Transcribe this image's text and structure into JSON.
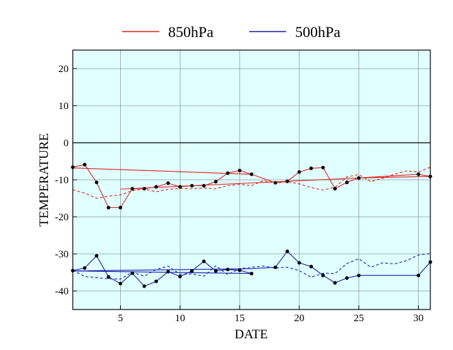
{
  "chart_data": {
    "type": "line",
    "title": "",
    "xlabel": "DATE",
    "ylabel": "TEMPERATURE",
    "xlim": [
      1,
      31
    ],
    "ylim": [
      -45,
      25
    ],
    "xticks": [
      5,
      10,
      15,
      20,
      25,
      30
    ],
    "yticks": [
      20,
      10,
      0,
      -10,
      -20,
      -30,
      -40
    ],
    "grid": true,
    "zero_line": true,
    "background": "#e0ffff",
    "legend": {
      "placement": "top",
      "entries": [
        {
          "label": "850hPa",
          "color": "#e02020"
        },
        {
          "label": "500hPa",
          "color": "#1a1aa8"
        }
      ]
    },
    "series": [
      {
        "key": "850hPa",
        "style": "solid-markers",
        "color": "#e02020",
        "points": [
          [
            1,
            -6.6
          ],
          [
            2,
            -5.9
          ],
          [
            3,
            -10.7
          ],
          [
            4,
            -17.5
          ],
          [
            5,
            -17.5
          ],
          [
            6,
            -12.4
          ],
          [
            7,
            -12.4
          ],
          [
            8,
            -11.9
          ],
          [
            9,
            -10.9
          ],
          [
            10,
            -11.9
          ],
          [
            11,
            -11.6
          ],
          [
            12,
            -11.6
          ],
          [
            13,
            -10.5
          ],
          [
            14,
            -8.2
          ],
          [
            15,
            -7.5
          ],
          [
            16,
            -8.5
          ],
          [
            1,
            -6.8
          ],
          [
            16,
            -8.5
          ],
          [
            18,
            -10.8
          ],
          [
            19,
            -10.4
          ],
          [
            20,
            -7.9
          ],
          [
            21,
            -6.9
          ],
          [
            22,
            -6.7
          ],
          [
            23,
            -12.4
          ],
          [
            24,
            -10.7
          ],
          [
            25,
            -9.5
          ],
          [
            30,
            -8.5
          ],
          [
            31,
            -9.1
          ],
          [
            25,
            -9.5
          ],
          [
            5,
            -12.5
          ]
        ],
        "marker_points": [
          [
            1,
            -6.6
          ],
          [
            2,
            -5.9
          ],
          [
            3,
            -10.7
          ],
          [
            4,
            -17.5
          ],
          [
            5,
            -17.5
          ],
          [
            6,
            -12.4
          ],
          [
            7,
            -12.4
          ],
          [
            8,
            -11.9
          ],
          [
            9,
            -10.9
          ],
          [
            10,
            -11.9
          ],
          [
            11,
            -11.6
          ],
          [
            12,
            -11.6
          ],
          [
            13,
            -10.5
          ],
          [
            14,
            -8.2
          ],
          [
            15,
            -7.5
          ],
          [
            16,
            -8.5
          ],
          [
            18,
            -10.8
          ],
          [
            19,
            -10.4
          ],
          [
            20,
            -7.9
          ],
          [
            21,
            -6.9
          ],
          [
            22,
            -6.7
          ],
          [
            23,
            -12.4
          ],
          [
            24,
            -10.7
          ],
          [
            25,
            -9.5
          ],
          [
            30,
            -8.5
          ],
          [
            31,
            -9.1
          ]
        ]
      },
      {
        "key": "850hPa-normal",
        "style": "dashed",
        "color": "#e02020",
        "points": [
          [
            1,
            -12.7
          ],
          [
            2,
            -13.6
          ],
          [
            3,
            -15.0
          ],
          [
            4,
            -14.4
          ],
          [
            5,
            -14.1
          ],
          [
            6,
            -12.9
          ],
          [
            7,
            -12.5
          ],
          [
            8,
            -13.2
          ],
          [
            9,
            -12.6
          ],
          [
            10,
            -12.3
          ],
          [
            11,
            -12.4
          ],
          [
            12,
            -12.2
          ],
          [
            13,
            -12.4
          ],
          [
            14,
            -11.6
          ],
          [
            15,
            -11.2
          ],
          [
            16,
            -11.6
          ],
          [
            17,
            -10.2
          ],
          [
            18,
            -10.9
          ],
          [
            19,
            -10.5
          ],
          [
            20,
            -11.1
          ],
          [
            21,
            -12.1
          ],
          [
            22,
            -12.8
          ],
          [
            23,
            -12.0
          ],
          [
            24,
            -9.2
          ],
          [
            25,
            -8.6
          ],
          [
            26,
            -10.5
          ],
          [
            27,
            -9.6
          ],
          [
            28,
            -8.5
          ],
          [
            29,
            -7.6
          ],
          [
            30,
            -7.9
          ],
          [
            31,
            -6.6
          ]
        ]
      },
      {
        "key": "500hPa",
        "style": "solid-markers",
        "color": "#1a1aa8",
        "points": [
          [
            1,
            -34.5
          ],
          [
            2,
            -33.8
          ],
          [
            3,
            -30.5
          ],
          [
            4,
            -36.2
          ],
          [
            5,
            -38.0
          ],
          [
            6,
            -35.2
          ],
          [
            7,
            -38.7
          ],
          [
            8,
            -37.4
          ],
          [
            9,
            -34.8
          ],
          [
            10,
            -36.1
          ],
          [
            11,
            -34.6
          ],
          [
            12,
            -32.0
          ],
          [
            13,
            -34.6
          ],
          [
            14,
            -34.2
          ],
          [
            15,
            -34.4
          ],
          [
            16,
            -35.3
          ],
          [
            1,
            -34.6
          ],
          [
            16,
            -34.0
          ],
          [
            18,
            -33.6
          ],
          [
            19,
            -29.3
          ],
          [
            20,
            -32.4
          ],
          [
            21,
            -33.4
          ],
          [
            22,
            -35.8
          ],
          [
            23,
            -37.8
          ],
          [
            24,
            -36.5
          ],
          [
            25,
            -35.8
          ],
          [
            30,
            -35.8
          ],
          [
            31,
            -32.2
          ]
        ],
        "marker_points": [
          [
            1,
            -34.5
          ],
          [
            2,
            -33.8
          ],
          [
            3,
            -30.5
          ],
          [
            4,
            -36.2
          ],
          [
            5,
            -38.0
          ],
          [
            6,
            -35.2
          ],
          [
            7,
            -38.7
          ],
          [
            8,
            -37.4
          ],
          [
            9,
            -34.8
          ],
          [
            10,
            -36.1
          ],
          [
            11,
            -34.6
          ],
          [
            12,
            -32.0
          ],
          [
            13,
            -34.6
          ],
          [
            14,
            -34.2
          ],
          [
            15,
            -34.4
          ],
          [
            16,
            -35.3
          ],
          [
            18,
            -33.6
          ],
          [
            19,
            -29.3
          ],
          [
            20,
            -32.4
          ],
          [
            21,
            -33.4
          ],
          [
            22,
            -35.8
          ],
          [
            23,
            -37.8
          ],
          [
            24,
            -36.5
          ],
          [
            25,
            -35.8
          ],
          [
            30,
            -35.8
          ],
          [
            31,
            -32.2
          ]
        ]
      },
      {
        "key": "500hPa-normal",
        "style": "dashed",
        "color": "#1a1aa8",
        "points": [
          [
            1,
            -34.4
          ],
          [
            2,
            -36.1
          ],
          [
            3,
            -36.4
          ],
          [
            4,
            -36.7
          ],
          [
            5,
            -36.8
          ],
          [
            6,
            -34.9
          ],
          [
            7,
            -36.0
          ],
          [
            8,
            -34.2
          ],
          [
            9,
            -33.3
          ],
          [
            10,
            -35.5
          ],
          [
            11,
            -35.4
          ],
          [
            12,
            -36.0
          ],
          [
            13,
            -33.2
          ],
          [
            14,
            -35.6
          ],
          [
            15,
            -34.0
          ],
          [
            16,
            -33.6
          ],
          [
            17,
            -33.3
          ],
          [
            18,
            -33.8
          ],
          [
            19,
            -33.6
          ],
          [
            20,
            -34.5
          ],
          [
            21,
            -36.3
          ],
          [
            22,
            -35.2
          ],
          [
            23,
            -35.3
          ],
          [
            24,
            -32.6
          ],
          [
            25,
            -31.3
          ],
          [
            26,
            -33.6
          ],
          [
            27,
            -32.4
          ],
          [
            28,
            -32.7
          ],
          [
            29,
            -31.8
          ],
          [
            30,
            -30.3
          ],
          [
            31,
            -29.9
          ]
        ]
      }
    ]
  }
}
